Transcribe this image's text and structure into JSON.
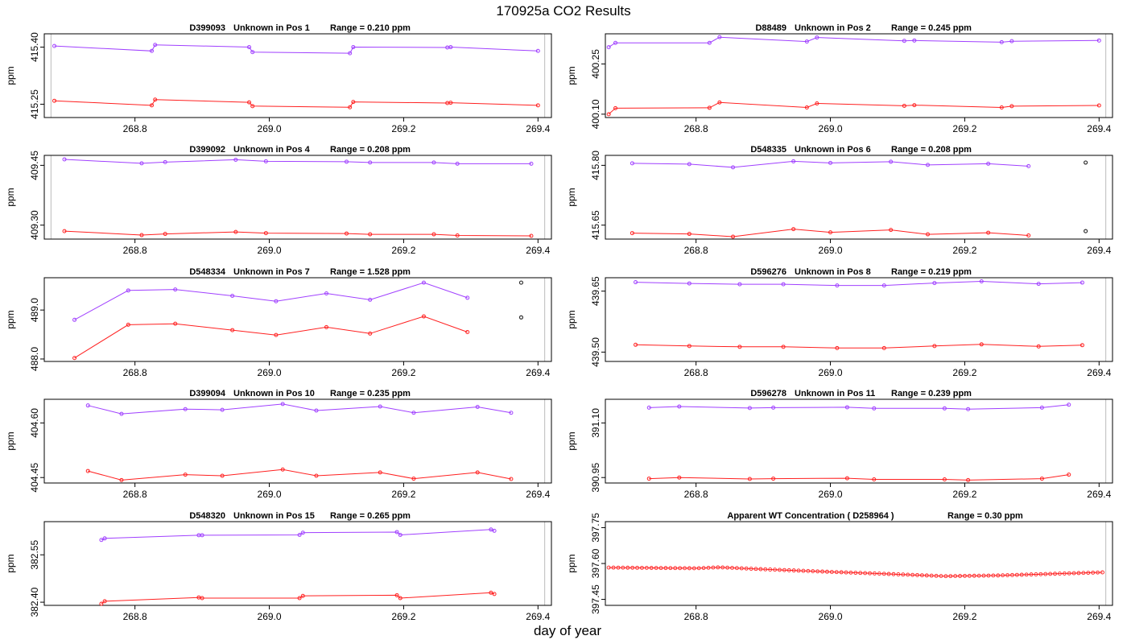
{
  "page": {
    "title": "170925a  CO2 Results",
    "xlabel": "day of year"
  },
  "colors": {
    "upper": "#a040ff",
    "lower": "#ff2020",
    "vline": "#bbbbbb",
    "flag": "#303030"
  },
  "chart_data": [
    {
      "type": "line",
      "panel": "1",
      "title_id": "D399093",
      "title_pos": "Unknown in Pos 1",
      "title_range": "Range =  0.210 ppm",
      "xlim": [
        268.665,
        269.42
      ],
      "ylim": [
        415.215,
        415.435
      ],
      "xticks": [
        268.8,
        269.0,
        269.2,
        269.4
      ],
      "xtick_labels": [
        "268.8",
        "269.0",
        "269.2",
        "269.4"
      ],
      "yticks": [
        415.25,
        415.4
      ],
      "ytick_labels": [
        "415.25",
        "415.40"
      ],
      "ylabel": "ppm",
      "vlines": [
        268.675,
        269.41
      ],
      "series": [
        {
          "name": "upper",
          "x": [
            268.68,
            268.825,
            268.83,
            268.97,
            268.975,
            269.12,
            269.125,
            269.265,
            269.27,
            269.4
          ],
          "y": [
            415.403,
            415.39,
            415.406,
            415.4,
            415.387,
            415.384,
            415.4,
            415.399,
            415.4,
            415.39
          ]
        },
        {
          "name": "lower",
          "x": [
            268.68,
            268.825,
            268.83,
            268.97,
            268.975,
            269.12,
            269.125,
            269.265,
            269.27,
            269.4
          ],
          "y": [
            415.259,
            415.247,
            415.262,
            415.255,
            415.245,
            415.242,
            415.256,
            415.253,
            415.254,
            415.247
          ]
        }
      ]
    },
    {
      "type": "line",
      "panel": "2",
      "title_id": "D88489",
      "title_pos": "Unknown in Pos 2",
      "title_range": "Range =  0.245 ppm",
      "xlim": [
        268.665,
        269.42
      ],
      "ylim": [
        400.09,
        400.34
      ],
      "xticks": [
        268.8,
        269.0,
        269.2,
        269.4
      ],
      "xtick_labels": [
        "268.8",
        "269.0",
        "269.2",
        "269.4"
      ],
      "yticks": [
        400.1,
        400.25
      ],
      "ytick_labels": [
        "400.10",
        "400.25"
      ],
      "ylabel": "ppm",
      "vlines": [
        268.665,
        269.41
      ],
      "series": [
        {
          "name": "upper",
          "x": [
            268.67,
            268.68,
            268.82,
            268.835,
            268.965,
            268.98,
            269.11,
            269.125,
            269.255,
            269.27,
            269.4
          ],
          "y": [
            400.3,
            400.313,
            400.313,
            400.33,
            400.317,
            400.329,
            400.319,
            400.32,
            400.315,
            400.318,
            400.32
          ]
        },
        {
          "name": "lower",
          "x": [
            268.67,
            268.68,
            268.82,
            268.835,
            268.965,
            268.98,
            269.11,
            269.125,
            269.255,
            269.27,
            269.4
          ],
          "y": [
            400.1,
            400.118,
            400.119,
            400.135,
            400.12,
            400.132,
            400.125,
            400.127,
            400.12,
            400.124,
            400.126
          ]
        }
      ]
    },
    {
      "type": "line",
      "panel": "4",
      "title_id": "D399092",
      "title_pos": "Unknown in Pos 4",
      "title_range": "Range =  0.208 ppm",
      "xlim": [
        268.665,
        269.42
      ],
      "ylim": [
        409.265,
        409.475
      ],
      "xticks": [
        268.8,
        269.0,
        269.2,
        269.4
      ],
      "xtick_labels": [
        "268.8",
        "269.0",
        "269.2",
        "269.4"
      ],
      "yticks": [
        409.3,
        409.45
      ],
      "ytick_labels": [
        "409.30",
        "409.45"
      ],
      "ylabel": "ppm",
      "vlines": [
        268.675,
        269.41
      ],
      "series": [
        {
          "name": "upper",
          "x": [
            268.695,
            268.81,
            268.845,
            268.95,
            268.995,
            269.115,
            269.15,
            269.245,
            269.28,
            269.39
          ],
          "y": [
            409.465,
            409.455,
            409.458,
            409.464,
            409.46,
            409.459,
            409.457,
            409.457,
            409.454,
            409.454
          ]
        },
        {
          "name": "lower",
          "x": [
            268.695,
            268.81,
            268.845,
            268.95,
            268.995,
            269.115,
            269.15,
            269.245,
            269.28,
            269.39
          ],
          "y": [
            409.285,
            409.275,
            409.278,
            409.283,
            409.28,
            409.279,
            409.277,
            409.277,
            409.274,
            409.273
          ]
        }
      ]
    },
    {
      "type": "line",
      "panel": "6",
      "title_id": "D548335",
      "title_pos": "Unknown in Pos 6",
      "title_range": "Range =  0.208 ppm",
      "xlim": [
        268.665,
        269.42
      ],
      "ylim": [
        415.615,
        415.825
      ],
      "xticks": [
        268.8,
        269.0,
        269.2,
        269.4
      ],
      "xtick_labels": [
        "268.8",
        "269.0",
        "269.2",
        "269.4"
      ],
      "yticks": [
        415.65,
        415.8
      ],
      "ytick_labels": [
        "415.65",
        "415.80"
      ],
      "ylabel": "ppm",
      "vlines": [
        268.665,
        269.41
      ],
      "series": [
        {
          "name": "upper",
          "x": [
            268.705,
            268.79,
            268.855,
            268.945,
            269.0,
            269.09,
            269.145,
            269.235,
            269.295
          ],
          "y": [
            415.805,
            415.803,
            415.795,
            415.81,
            415.806,
            415.809,
            415.801,
            415.804,
            415.798
          ]
        },
        {
          "name": "lower",
          "x": [
            268.705,
            268.79,
            268.855,
            268.945,
            269.0,
            269.09,
            269.145,
            269.235,
            269.295
          ],
          "y": [
            415.63,
            415.628,
            415.621,
            415.64,
            415.632,
            415.638,
            415.627,
            415.631,
            415.624
          ]
        }
      ],
      "flags": [
        {
          "x": 269.38,
          "y": 415.807
        },
        {
          "x": 269.38,
          "y": 415.635
        }
      ]
    },
    {
      "type": "line",
      "panel": "7",
      "title_id": "D548334",
      "title_pos": "Unknown in Pos 7",
      "title_range": "Range =  1.528 ppm",
      "xlim": [
        268.665,
        269.42
      ],
      "ylim": [
        487.95,
        489.66
      ],
      "xticks": [
        268.8,
        269.0,
        269.2,
        269.4
      ],
      "xtick_labels": [
        "268.8",
        "269.0",
        "269.2",
        "269.4"
      ],
      "yticks": [
        488.0,
        489.0
      ],
      "ytick_labels": [
        "488.0",
        "489.0"
      ],
      "ylabel": "ppm",
      "vlines": [
        268.665,
        269.41
      ],
      "series": [
        {
          "name": "upper",
          "x": [
            268.71,
            268.79,
            268.86,
            268.945,
            269.01,
            269.085,
            269.15,
            269.23,
            269.295
          ],
          "y": [
            488.8,
            489.4,
            489.42,
            489.29,
            489.18,
            489.34,
            489.21,
            489.56,
            489.25
          ]
        },
        {
          "name": "lower",
          "x": [
            268.71,
            268.79,
            268.86,
            268.945,
            269.01,
            269.085,
            269.15,
            269.23,
            269.295
          ],
          "y": [
            488.02,
            488.7,
            488.72,
            488.59,
            488.49,
            488.65,
            488.52,
            488.87,
            488.55
          ]
        }
      ],
      "flags": [
        {
          "x": 269.375,
          "y": 489.56
        },
        {
          "x": 269.375,
          "y": 488.85
        }
      ]
    },
    {
      "type": "line",
      "panel": "8",
      "title_id": "D596276",
      "title_pos": "Unknown in Pos 8",
      "title_range": "Range =  0.219 ppm",
      "xlim": [
        268.665,
        269.42
      ],
      "ylim": [
        439.477,
        439.683
      ],
      "xticks": [
        268.8,
        269.0,
        269.2,
        269.4
      ],
      "xtick_labels": [
        "268.8",
        "269.0",
        "269.2",
        "269.4"
      ],
      "yticks": [
        439.5,
        439.65
      ],
      "ytick_labels": [
        "439.50",
        "439.65"
      ],
      "ylabel": "ppm",
      "vlines": [
        268.665,
        269.41
      ],
      "series": [
        {
          "name": "upper",
          "x": [
            268.71,
            268.79,
            268.865,
            268.93,
            269.01,
            269.08,
            269.155,
            269.225,
            269.31,
            269.375
          ],
          "y": [
            439.672,
            439.669,
            439.667,
            439.667,
            439.664,
            439.664,
            439.67,
            439.674,
            439.668,
            439.671
          ]
        },
        {
          "name": "lower",
          "x": [
            268.71,
            268.79,
            268.865,
            268.93,
            269.01,
            269.08,
            269.155,
            269.225,
            269.31,
            269.375
          ],
          "y": [
            439.518,
            439.515,
            439.513,
            439.513,
            439.51,
            439.51,
            439.515,
            439.519,
            439.514,
            439.517
          ]
        }
      ]
    },
    {
      "type": "line",
      "panel": "10",
      "title_id": "D399094",
      "title_pos": "Unknown in Pos 10",
      "title_range": "Range =  0.235 ppm",
      "xlim": [
        268.665,
        269.42
      ],
      "ylim": [
        404.435,
        404.665
      ],
      "xticks": [
        268.8,
        269.0,
        269.2,
        269.4
      ],
      "xtick_labels": [
        "268.8",
        "269.0",
        "269.2",
        "269.4"
      ],
      "yticks": [
        404.45,
        404.6
      ],
      "ytick_labels": [
        "404.45",
        "404.60"
      ],
      "ylabel": "ppm",
      "vlines": [
        268.665,
        269.41
      ],
      "series": [
        {
          "name": "upper",
          "x": [
            268.73,
            268.78,
            268.875,
            268.93,
            269.02,
            269.07,
            269.165,
            269.215,
            269.31,
            269.36
          ],
          "y": [
            404.648,
            404.625,
            404.638,
            404.636,
            404.652,
            404.634,
            404.645,
            404.628,
            404.644,
            404.628
          ]
        },
        {
          "name": "lower",
          "x": [
            268.73,
            268.78,
            268.875,
            268.93,
            269.02,
            269.07,
            269.165,
            269.215,
            269.31,
            269.36
          ],
          "y": [
            404.468,
            404.443,
            404.458,
            404.455,
            404.472,
            404.455,
            404.464,
            404.447,
            404.464,
            404.446
          ]
        }
      ]
    },
    {
      "type": "line",
      "panel": "11",
      "title_id": "D596278",
      "title_pos": "Unknown in Pos 11",
      "title_range": "Range =  0.239 ppm",
      "xlim": [
        268.665,
        269.42
      ],
      "ylim": [
        390.935,
        391.165
      ],
      "xticks": [
        268.8,
        269.0,
        269.2,
        269.4
      ],
      "xtick_labels": [
        "268.8",
        "269.0",
        "269.2",
        "269.4"
      ],
      "yticks": [
        390.95,
        391.1
      ],
      "ytick_labels": [
        "390.95",
        "391.10"
      ],
      "ylabel": "ppm",
      "vlines": [
        268.665,
        269.41
      ],
      "series": [
        {
          "name": "upper",
          "x": [
            268.73,
            268.775,
            268.88,
            268.915,
            269.025,
            269.065,
            269.17,
            269.205,
            269.315,
            269.355
          ],
          "y": [
            391.142,
            391.145,
            391.141,
            391.142,
            391.143,
            391.14,
            391.14,
            391.138,
            391.142,
            391.15
          ]
        },
        {
          "name": "lower",
          "x": [
            268.73,
            268.775,
            268.88,
            268.915,
            269.025,
            269.065,
            269.17,
            269.205,
            269.315,
            269.355
          ],
          "y": [
            390.947,
            390.95,
            390.946,
            390.947,
            390.948,
            390.945,
            390.945,
            390.943,
            390.947,
            390.958
          ]
        }
      ]
    },
    {
      "type": "line",
      "panel": "15",
      "title_id": "D548320",
      "title_pos": "Unknown in Pos 15",
      "title_range": "Range =  0.265 ppm",
      "xlim": [
        268.665,
        269.42
      ],
      "ylim": [
        382.39,
        382.655
      ],
      "xticks": [
        268.8,
        269.0,
        269.2,
        269.4
      ],
      "xtick_labels": [
        "268.8",
        "269.0",
        "269.2",
        "269.4"
      ],
      "yticks": [
        382.4,
        382.55
      ],
      "ytick_labels": [
        "382.40",
        "382.55"
      ],
      "ylabel": "ppm",
      "vlines": [
        268.665,
        269.41
      ],
      "series": [
        {
          "name": "upper",
          "x": [
            268.75,
            268.755,
            268.895,
            268.9,
            269.045,
            269.05,
            269.19,
            269.195,
            269.33,
            269.335
          ],
          "y": [
            382.597,
            382.602,
            382.612,
            382.612,
            382.613,
            382.62,
            382.622,
            382.613,
            382.63,
            382.626
          ]
        },
        {
          "name": "lower",
          "x": [
            268.75,
            268.755,
            268.895,
            268.9,
            269.045,
            269.05,
            269.19,
            269.195,
            269.33,
            269.335
          ],
          "y": [
            382.395,
            382.403,
            382.415,
            382.413,
            382.413,
            382.42,
            382.422,
            382.413,
            382.43,
            382.426
          ]
        }
      ]
    },
    {
      "type": "scatter-line",
      "panel": "WT",
      "title_main": "Apparent WT Concentration ( D258964 )",
      "title_range": "Range = 0.30 ppm",
      "xlim": [
        268.665,
        269.42
      ],
      "ylim": [
        397.425,
        397.775
      ],
      "xticks": [
        268.8,
        269.0,
        269.2,
        269.4
      ],
      "xtick_labels": [
        "268.8",
        "269.0",
        "269.2",
        "269.4"
      ],
      "yticks": [
        397.45,
        397.6,
        397.75
      ],
      "ytick_labels": [
        "397.45",
        "397.60",
        "397.75"
      ],
      "ylabel": "ppm",
      "vlines": [
        268.665,
        269.41
      ],
      "wt_start": 268.67,
      "wt_end": 269.405,
      "wt_count": 105,
      "wt_knots_x": [
        268.67,
        268.8,
        268.835,
        268.9,
        269.0,
        269.08,
        269.17,
        269.25,
        269.405
      ],
      "wt_knots_y": [
        397.583,
        397.58,
        397.584,
        397.576,
        397.565,
        397.557,
        397.547,
        397.55,
        397.563
      ]
    }
  ]
}
